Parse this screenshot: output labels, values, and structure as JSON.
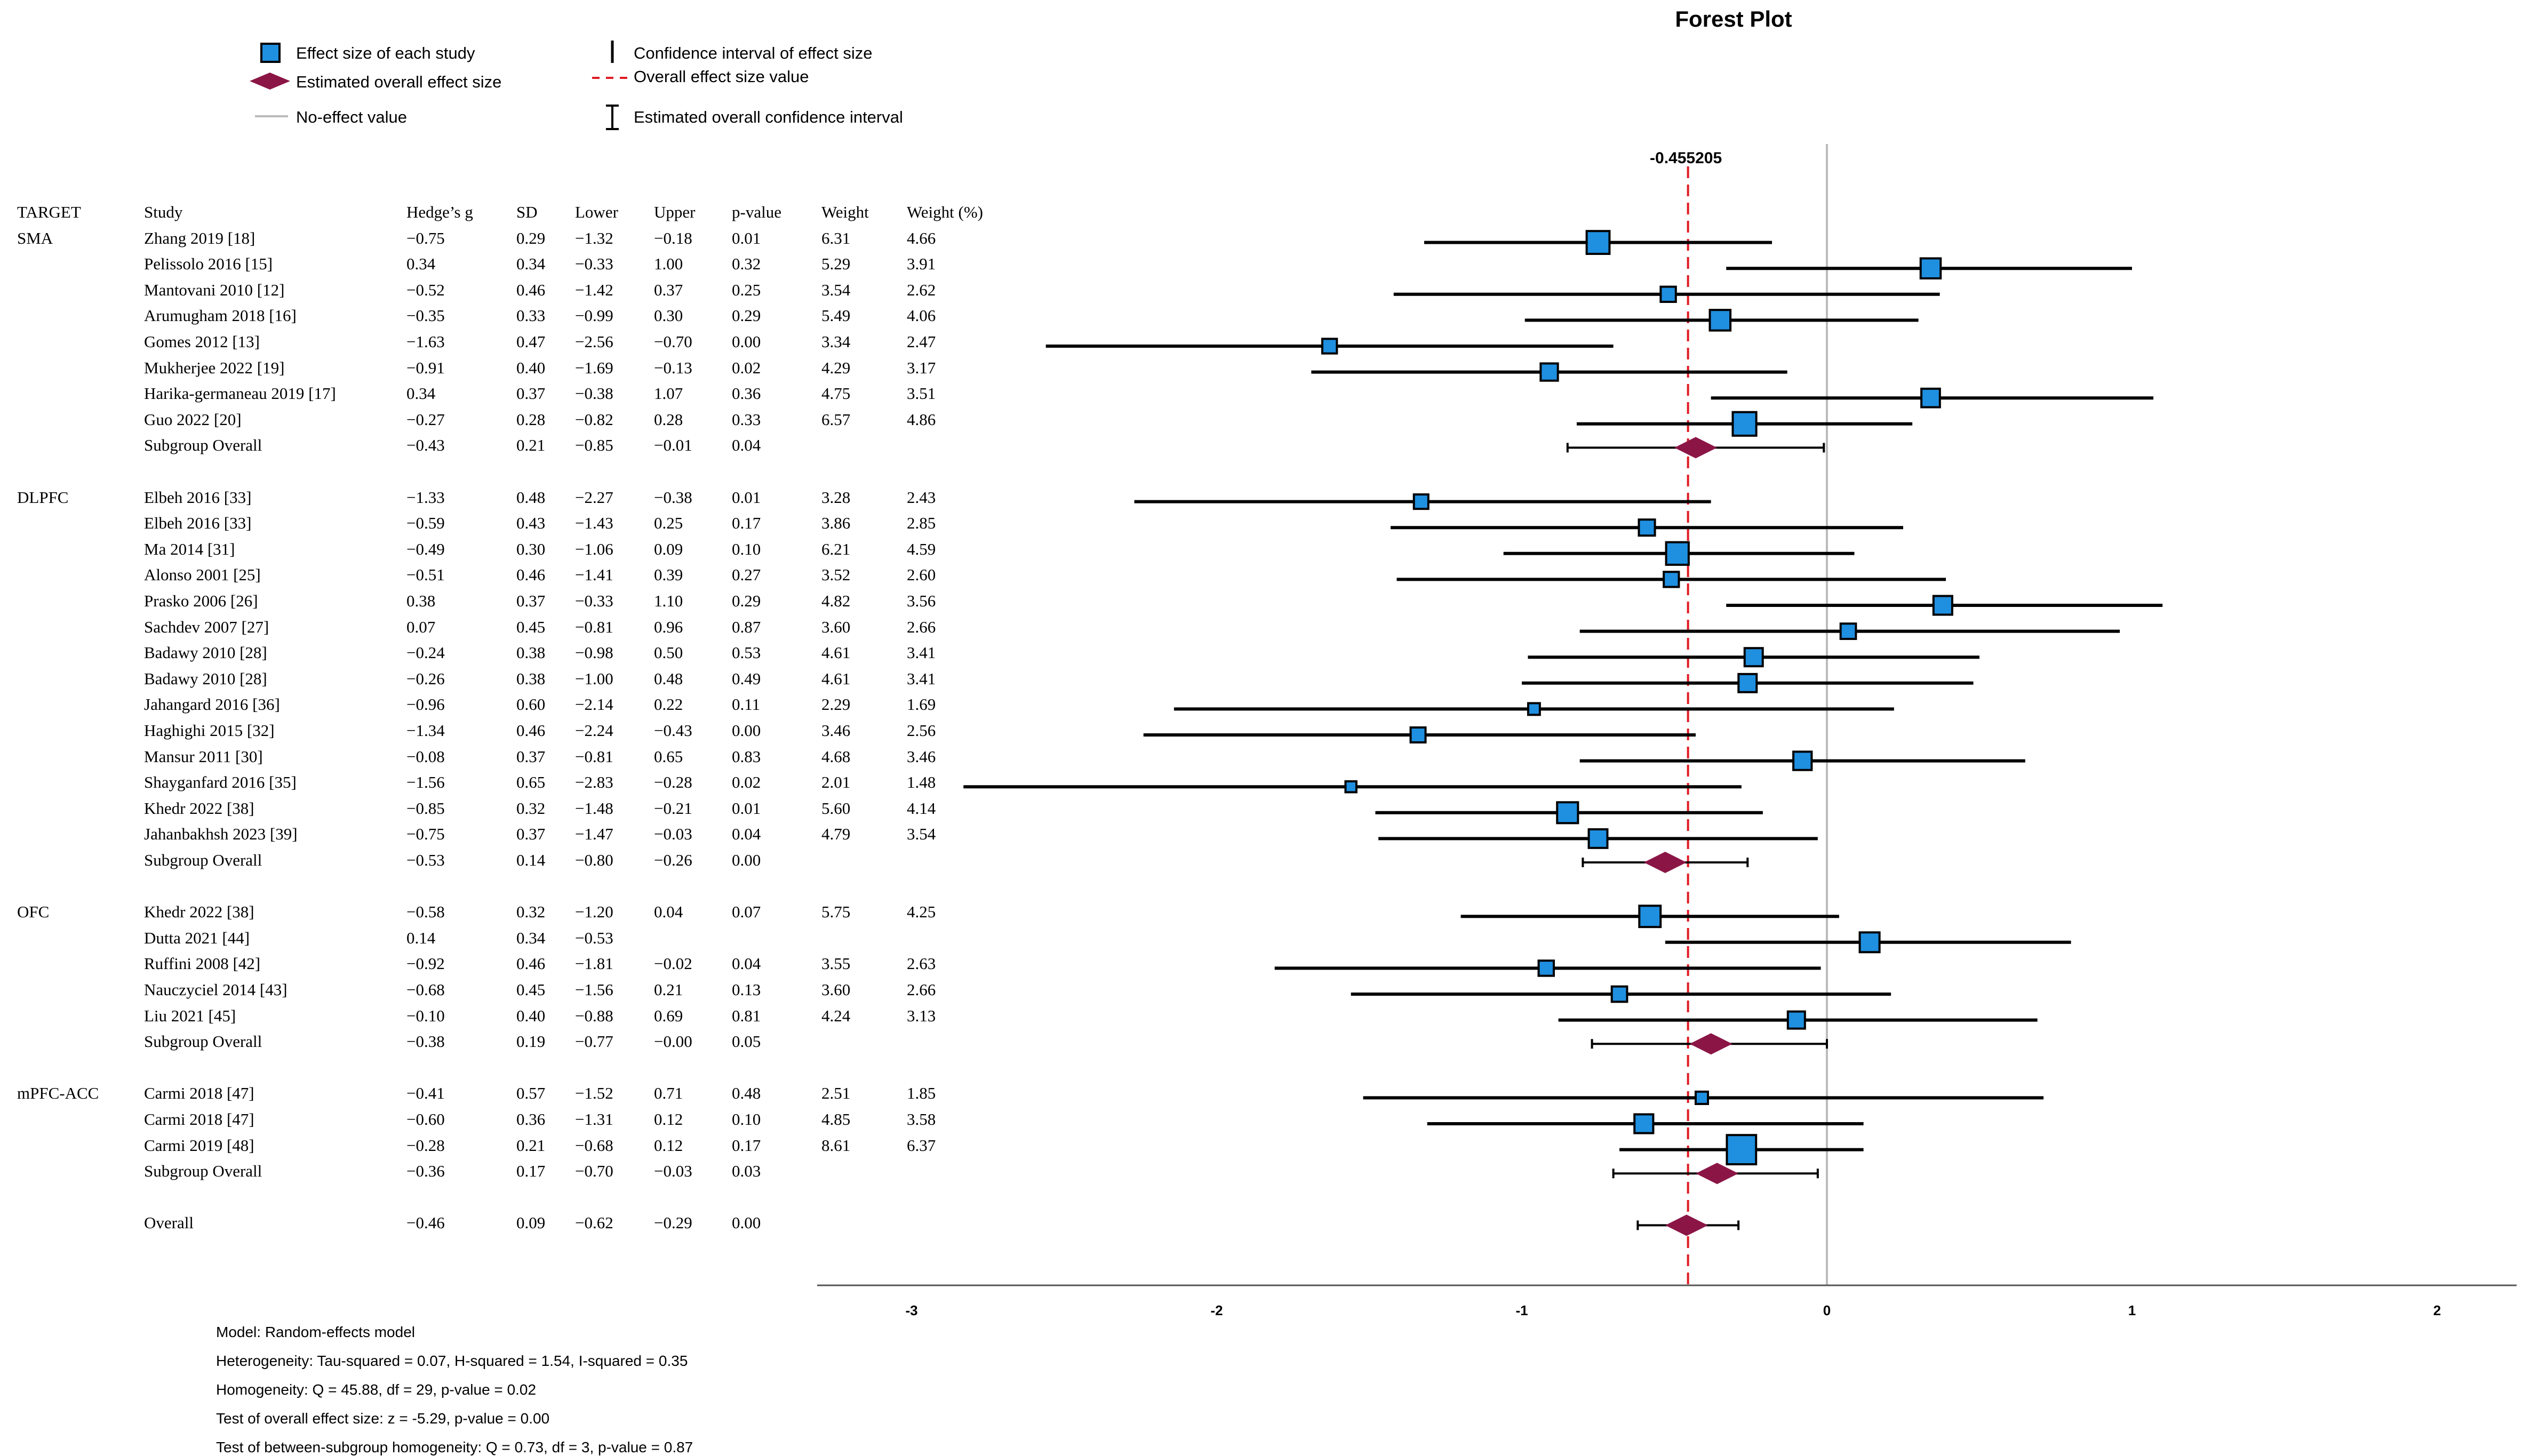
{
  "chart_data": {
    "type": "forest",
    "title": "Forest Plot",
    "legend": {
      "effect_size": "Effect size of each study",
      "estimated_overall": "Estimated overall effect size",
      "no_effect": "No-effect value",
      "ci_effect": "Confidence interval of effect size",
      "overall_line": "Overall effect size value",
      "overall_ci": "Estimated overall confidence interval"
    },
    "colors": {
      "box": "#1f8fe0",
      "diamond": "#8b1646",
      "dash": "#e01b24",
      "ref": "#bbbbbb"
    },
    "headers": [
      "TARGET",
      "Study",
      "Hedge’s g",
      "SD",
      "Lower",
      "Upper",
      "p-value",
      "Weight",
      "Weight (%)"
    ],
    "overall_line_label": "-0.455205",
    "overall_line_value": -0.455205,
    "x_ticks": [
      "-3",
      "-2",
      "-1",
      "0",
      "1",
      "2"
    ],
    "x_tick_values": [
      -3,
      -2,
      -1,
      0,
      1,
      2
    ],
    "xlim": [
      -3.3,
      2.3
    ],
    "rows": [
      {
        "target": "TARGET",
        "study": "Study",
        "g": "Hedge’s g",
        "sd": "SD",
        "lo": "Lower",
        "hi": "Upper",
        "p": "p-value",
        "w": "Weight",
        "wp": "Weight (%)",
        "kind": "header"
      },
      {
        "target": "SMA",
        "study": "Zhang 2019 [18]",
        "g": "−0.75",
        "sd": "0.29",
        "lo": "−1.32",
        "hi": "−0.18",
        "p": "0.01",
        "w": "6.31",
        "wp": "4.66",
        "kind": "study",
        "est": -0.75,
        "ciLo": -1.32,
        "ciHi": -0.18,
        "weight": 6.31
      },
      {
        "study": "Pelissolo 2016 [15]",
        "g": "0.34",
        "sd": "0.34",
        "lo": "−0.33",
        "hi": "1.00",
        "p": "0.32",
        "w": "5.29",
        "wp": "3.91",
        "kind": "study",
        "est": 0.34,
        "ciLo": -0.33,
        "ciHi": 1.0,
        "weight": 5.29
      },
      {
        "study": "Mantovani 2010 [12]",
        "g": "−0.52",
        "sd": "0.46",
        "lo": "−1.42",
        "hi": "0.37",
        "p": "0.25",
        "w": "3.54",
        "wp": "2.62",
        "kind": "study",
        "est": -0.52,
        "ciLo": -1.42,
        "ciHi": 0.37,
        "weight": 3.54
      },
      {
        "study": "Arumugham 2018 [16]",
        "g": "−0.35",
        "sd": "0.33",
        "lo": "−0.99",
        "hi": "0.30",
        "p": "0.29",
        "w": "5.49",
        "wp": "4.06",
        "kind": "study",
        "est": -0.35,
        "ciLo": -0.99,
        "ciHi": 0.3,
        "weight": 5.49
      },
      {
        "study": "Gomes 2012 [13]",
        "g": "−1.63",
        "sd": "0.47",
        "lo": "−2.56",
        "hi": "−0.70",
        "p": "0.00",
        "w": "3.34",
        "wp": "2.47",
        "kind": "study",
        "est": -1.63,
        "ciLo": -2.56,
        "ciHi": -0.7,
        "weight": 3.34
      },
      {
        "study": "Mukherjee 2022 [19]",
        "g": "−0.91",
        "sd": "0.40",
        "lo": "−1.69",
        "hi": "−0.13",
        "p": "0.02",
        "w": "4.29",
        "wp": "3.17",
        "kind": "study",
        "est": -0.91,
        "ciLo": -1.69,
        "ciHi": -0.13,
        "weight": 4.29
      },
      {
        "study": "Harika-germaneau 2019 [17]",
        "g": "0.34",
        "sd": "0.37",
        "lo": "−0.38",
        "hi": "1.07",
        "p": "0.36",
        "w": "4.75",
        "wp": "3.51",
        "kind": "study",
        "est": 0.34,
        "ciLo": -0.38,
        "ciHi": 1.07,
        "weight": 4.75
      },
      {
        "study": "Guo 2022 [20]",
        "g": "−0.27",
        "sd": "0.28",
        "lo": "−0.82",
        "hi": "0.28",
        "p": "0.33",
        "w": "6.57",
        "wp": "4.86",
        "kind": "study",
        "est": -0.27,
        "ciLo": -0.82,
        "ciHi": 0.28,
        "weight": 6.57
      },
      {
        "study": "Subgroup Overall",
        "g": "−0.43",
        "sd": "0.21",
        "lo": "−0.85",
        "hi": "−0.01",
        "p": "0.04",
        "kind": "subgroup",
        "est": -0.43,
        "ciLo": -0.85,
        "ciHi": -0.01
      },
      {
        "kind": "blank"
      },
      {
        "target": "DLPFC",
        "study": "Elbeh 2016 [33]",
        "g": "−1.33",
        "sd": "0.48",
        "lo": "−2.27",
        "hi": "−0.38",
        "p": "0.01",
        "w": "3.28",
        "wp": "2.43",
        "kind": "study",
        "est": -1.33,
        "ciLo": -2.27,
        "ciHi": -0.38,
        "weight": 3.28
      },
      {
        "study": "Elbeh 2016 [33]",
        "g": "−0.59",
        "sd": "0.43",
        "lo": "−1.43",
        "hi": "0.25",
        "p": "0.17",
        "w": "3.86",
        "wp": "2.85",
        "kind": "study",
        "est": -0.59,
        "ciLo": -1.43,
        "ciHi": 0.25,
        "weight": 3.86
      },
      {
        "study": "Ma 2014 [31]",
        "g": "−0.49",
        "sd": "0.30",
        "lo": "−1.06",
        "hi": "0.09",
        "p": "0.10",
        "w": "6.21",
        "wp": "4.59",
        "kind": "study",
        "est": -0.49,
        "ciLo": -1.06,
        "ciHi": 0.09,
        "weight": 6.21
      },
      {
        "study": "Alonso 2001 [25]",
        "g": "−0.51",
        "sd": "0.46",
        "lo": "−1.41",
        "hi": "0.39",
        "p": "0.27",
        "w": "3.52",
        "wp": "2.60",
        "kind": "study",
        "est": -0.51,
        "ciLo": -1.41,
        "ciHi": 0.39,
        "weight": 3.52
      },
      {
        "study": "Prasko 2006 [26]",
        "g": "0.38",
        "sd": "0.37",
        "lo": "−0.33",
        "hi": "1.10",
        "p": "0.29",
        "w": "4.82",
        "wp": "3.56",
        "kind": "study",
        "est": 0.38,
        "ciLo": -0.33,
        "ciHi": 1.1,
        "weight": 4.82
      },
      {
        "study": "Sachdev 2007 [27]",
        "g": "0.07",
        "sd": "0.45",
        "lo": "−0.81",
        "hi": "0.96",
        "p": "0.87",
        "w": "3.60",
        "wp": "2.66",
        "kind": "study",
        "est": 0.07,
        "ciLo": -0.81,
        "ciHi": 0.96,
        "weight": 3.6
      },
      {
        "study": "Badawy 2010 [28]",
        "g": "−0.24",
        "sd": "0.38",
        "lo": "−0.98",
        "hi": "0.50",
        "p": "0.53",
        "w": "4.61",
        "wp": "3.41",
        "kind": "study",
        "est": -0.24,
        "ciLo": -0.98,
        "ciHi": 0.5,
        "weight": 4.61
      },
      {
        "study": "Badawy 2010 [28]",
        "g": "−0.26",
        "sd": "0.38",
        "lo": "−1.00",
        "hi": "0.48",
        "p": "0.49",
        "w": "4.61",
        "wp": "3.41",
        "kind": "study",
        "est": -0.26,
        "ciLo": -1.0,
        "ciHi": 0.48,
        "weight": 4.61
      },
      {
        "study": "Jahangard 2016 [36]",
        "g": "−0.96",
        "sd": "0.60",
        "lo": "−2.14",
        "hi": "0.22",
        "p": "0.11",
        "w": "2.29",
        "wp": "1.69",
        "kind": "study",
        "est": -0.96,
        "ciLo": -2.14,
        "ciHi": 0.22,
        "weight": 2.29
      },
      {
        "study": "Haghighi 2015 [32]",
        "g": "−1.34",
        "sd": "0.46",
        "lo": "−2.24",
        "hi": "−0.43",
        "p": "0.00",
        "w": "3.46",
        "wp": "2.56",
        "kind": "study",
        "est": -1.34,
        "ciLo": -2.24,
        "ciHi": -0.43,
        "weight": 3.46
      },
      {
        "study": "Mansur 2011 [30]",
        "g": "−0.08",
        "sd": "0.37",
        "lo": "−0.81",
        "hi": "0.65",
        "p": "0.83",
        "w": "4.68",
        "wp": "3.46",
        "kind": "study",
        "est": -0.08,
        "ciLo": -0.81,
        "ciHi": 0.65,
        "weight": 4.68
      },
      {
        "study": "Shayganfard 2016 [35]",
        "g": "−1.56",
        "sd": "0.65",
        "lo": "−2.83",
        "hi": "−0.28",
        "p": "0.02",
        "w": "2.01",
        "wp": "1.48",
        "kind": "study",
        "est": -1.56,
        "ciLo": -2.83,
        "ciHi": -0.28,
        "weight": 2.01
      },
      {
        "study": "Khedr 2022 [38]",
        "g": "−0.85",
        "sd": "0.32",
        "lo": "−1.48",
        "hi": "−0.21",
        "p": "0.01",
        "w": "5.60",
        "wp": "4.14",
        "kind": "study",
        "est": -0.85,
        "ciLo": -1.48,
        "ciHi": -0.21,
        "weight": 5.6
      },
      {
        "study": "Jahanbakhsh 2023 [39]",
        "g": "−0.75",
        "sd": "0.37",
        "lo": "−1.47",
        "hi": "−0.03",
        "p": "0.04",
        "w": "4.79",
        "wp": "3.54",
        "kind": "study",
        "est": -0.75,
        "ciLo": -1.47,
        "ciHi": -0.03,
        "weight": 4.79
      },
      {
        "study": "Subgroup Overall",
        "g": "−0.53",
        "sd": "0.14",
        "lo": "−0.80",
        "hi": "−0.26",
        "p": "0.00",
        "kind": "subgroup",
        "est": -0.53,
        "ciLo": -0.8,
        "ciHi": -0.26
      },
      {
        "kind": "blank"
      },
      {
        "target": "OFC",
        "study": "Khedr 2022 [38]",
        "g": "−0.58",
        "sd": "0.32",
        "lo": "−1.20",
        "hi": "0.04",
        "p": "0.07",
        "w": "5.75",
        "wp": "4.25",
        "kind": "study",
        "est": -0.58,
        "ciLo": -1.2,
        "ciHi": 0.04,
        "weight": 5.75
      },
      {
        "study": "Dutta 2021 [44]",
        "g": "0.14",
        "sd": "0.34",
        "lo": "−0.53",
        "kind": "study",
        "est": 0.14,
        "ciLo": -0.53,
        "ciHi": 0.8,
        "weight": 5.2
      },
      {
        "study": "Ruffini 2008 [42]",
        "g": "−0.92",
        "sd": "0.46",
        "lo": "−1.81",
        "hi": "−0.02",
        "p": "0.04",
        "w": "3.55",
        "wp": "2.63",
        "kind": "study",
        "est": -0.92,
        "ciLo": -1.81,
        "ciHi": -0.02,
        "weight": 3.55
      },
      {
        "study": "Nauczyciel 2014 [43]",
        "g": "−0.68",
        "sd": "0.45",
        "lo": "−1.56",
        "hi": "0.21",
        "p": "0.13",
        "w": "3.60",
        "wp": "2.66",
        "kind": "study",
        "est": -0.68,
        "ciLo": -1.56,
        "ciHi": 0.21,
        "weight": 3.6
      },
      {
        "study": "Liu 2021 [45]",
        "g": "−0.10",
        "sd": "0.40",
        "lo": "−0.88",
        "hi": "0.69",
        "p": "0.81",
        "w": "4.24",
        "wp": "3.13",
        "kind": "study",
        "est": -0.1,
        "ciLo": -0.88,
        "ciHi": 0.69,
        "weight": 4.24
      },
      {
        "study": "Subgroup Overall",
        "g": "−0.38",
        "sd": "0.19",
        "lo": "−0.77",
        "hi": "−0.00",
        "p": "0.05",
        "kind": "subgroup",
        "est": -0.38,
        "ciLo": -0.77,
        "ciHi": 0.0
      },
      {
        "kind": "blank"
      },
      {
        "target": "mPFC-ACC",
        "study": "Carmi 2018 [47]",
        "g": "−0.41",
        "sd": "0.57",
        "lo": "−1.52",
        "hi": "0.71",
        "p": "0.48",
        "w": "2.51",
        "wp": "1.85",
        "kind": "study",
        "est": -0.41,
        "ciLo": -1.52,
        "ciHi": 0.71,
        "weight": 2.51
      },
      {
        "study": "Carmi 2018 [47]",
        "g": "−0.60",
        "sd": "0.36",
        "lo": "−1.31",
        "hi": "0.12",
        "p": "0.10",
        "w": "4.85",
        "wp": "3.58",
        "kind": "study",
        "est": -0.6,
        "ciLo": -1.31,
        "ciHi": 0.12,
        "weight": 4.85
      },
      {
        "study": "Carmi 2019 [48]",
        "g": "−0.28",
        "sd": "0.21",
        "lo": "−0.68",
        "hi": "0.12",
        "p": "0.17",
        "w": "8.61",
        "wp": "6.37",
        "kind": "study",
        "est": -0.28,
        "ciLo": -0.68,
        "ciHi": 0.12,
        "weight": 8.61
      },
      {
        "study": "Subgroup Overall",
        "g": "−0.36",
        "sd": "0.17",
        "lo": "−0.70",
        "hi": "−0.03",
        "p": "0.03",
        "kind": "subgroup",
        "est": -0.36,
        "ciLo": -0.7,
        "ciHi": -0.03
      },
      {
        "kind": "blank"
      },
      {
        "study": "Overall",
        "g": "−0.46",
        "sd": "0.09",
        "lo": "−0.62",
        "hi": "−0.29",
        "p": "0.00",
        "kind": "overall",
        "est": -0.46,
        "ciLo": -0.62,
        "ciHi": -0.29
      }
    ],
    "footnotes": [
      "Model: Random-effects model",
      "Heterogeneity: Tau-squared = 0.07, H-squared = 1.54, I-squared = 0.35",
      "Homogeneity: Q = 45.88, df = 29, p-value = 0.02",
      "Test of overall effect size: z = -5.29, p-value = 0.00",
      "Test of between-subgroup homogeneity: Q = 0.73, df = 3, p-value = 0.87"
    ]
  }
}
